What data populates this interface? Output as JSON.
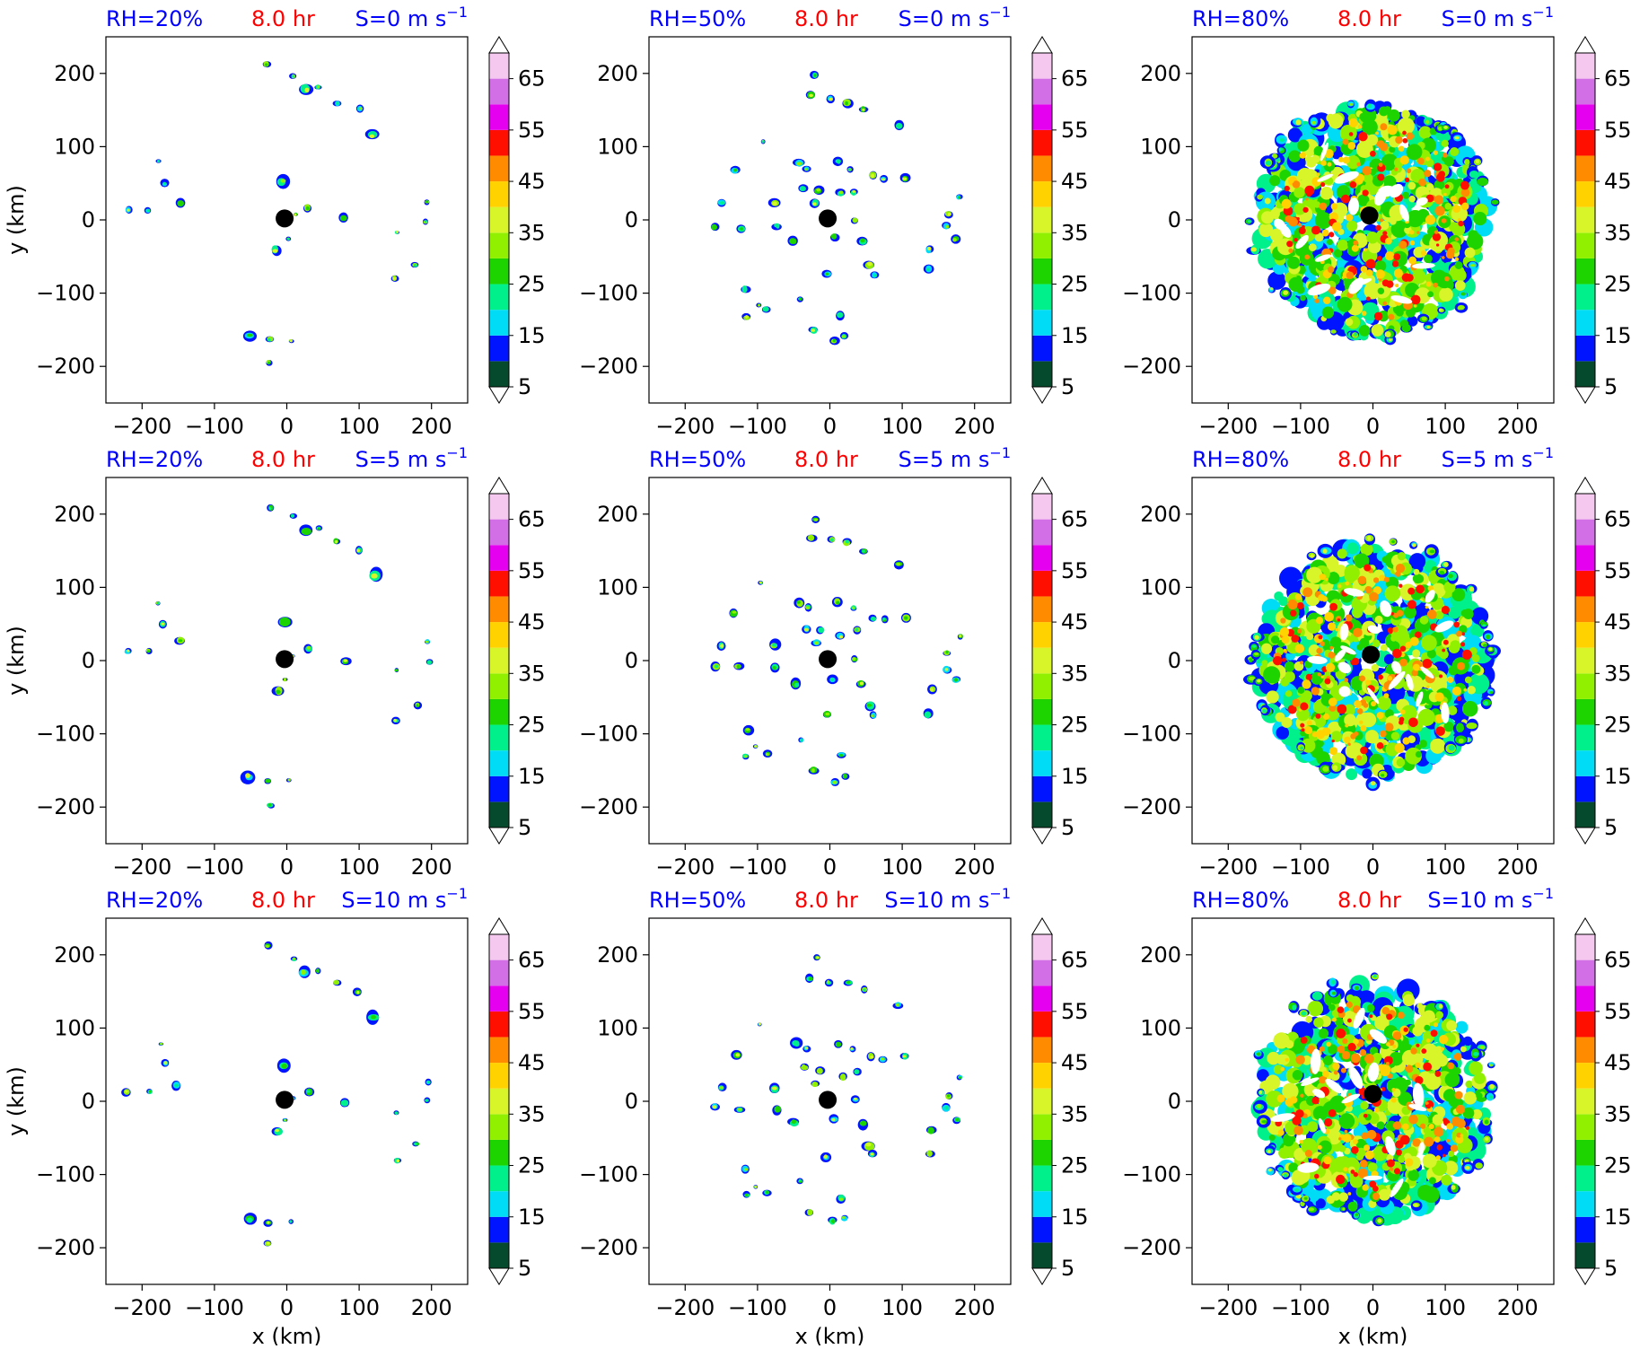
{
  "figure": {
    "y_axis_label": "y (km)",
    "x_axis_label": "x (km)",
    "time_label": "8.0 hr",
    "colors": {
      "rh_label": "#0000ff",
      "time_label": "#ff0000",
      "shear_label": "#0000ff",
      "center_marker": "#000000"
    }
  },
  "chart_data": [
    {
      "type": "heatmap",
      "rh_label": "RH=20%",
      "time_label": "8.0 hr",
      "shear_label": "S=0 m s",
      "shear_exponent": "−1",
      "xlim": [
        -250,
        250
      ],
      "ylim": [
        -250,
        250
      ],
      "xticks": [
        -200,
        -100,
        0,
        100,
        200
      ],
      "yticks": [
        -200,
        -100,
        0,
        100,
        200
      ],
      "xlabel": "",
      "ylabel": "y (km)",
      "coverage": "sparse",
      "center": [
        -3,
        2
      ]
    },
    {
      "type": "heatmap",
      "rh_label": "RH=50%",
      "time_label": "8.0 hr",
      "shear_label": "S=0 m s",
      "shear_exponent": "−1",
      "xlim": [
        -250,
        250
      ],
      "ylim": [
        -250,
        250
      ],
      "xticks": [
        -200,
        -100,
        0,
        100,
        200
      ],
      "yticks": [
        -200,
        -100,
        0,
        100,
        200
      ],
      "xlabel": "",
      "ylabel": "",
      "coverage": "moderate",
      "center": [
        -3,
        2
      ]
    },
    {
      "type": "heatmap",
      "rh_label": "RH=80%",
      "time_label": "8.0 hr",
      "shear_label": "S=0 m s",
      "shear_exponent": "−1",
      "xlim": [
        -250,
        250
      ],
      "ylim": [
        -250,
        250
      ],
      "xticks": [
        -200,
        -100,
        0,
        100,
        200
      ],
      "yticks": [
        -200,
        -100,
        0,
        100,
        200
      ],
      "xlabel": "",
      "ylabel": "",
      "coverage": "dense",
      "center": [
        -5,
        6
      ]
    },
    {
      "type": "heatmap",
      "rh_label": "RH=20%",
      "time_label": "8.0 hr",
      "shear_label": "S=5 m s",
      "shear_exponent": "−1",
      "xlim": [
        -250,
        250
      ],
      "ylim": [
        -250,
        250
      ],
      "xticks": [
        -200,
        -100,
        0,
        100,
        200
      ],
      "yticks": [
        -200,
        -100,
        0,
        100,
        200
      ],
      "xlabel": "",
      "ylabel": "y (km)",
      "coverage": "sparse",
      "center": [
        -3,
        2
      ]
    },
    {
      "type": "heatmap",
      "rh_label": "RH=50%",
      "time_label": "8.0 hr",
      "shear_label": "S=5 m s",
      "shear_exponent": "−1",
      "xlim": [
        -250,
        250
      ],
      "ylim": [
        -250,
        250
      ],
      "xticks": [
        -200,
        -100,
        0,
        100,
        200
      ],
      "yticks": [
        -200,
        -100,
        0,
        100,
        200
      ],
      "xlabel": "",
      "ylabel": "",
      "coverage": "moderate",
      "center": [
        -3,
        2
      ]
    },
    {
      "type": "heatmap",
      "rh_label": "RH=80%",
      "time_label": "8.0 hr",
      "shear_label": "S=5 m s",
      "shear_exponent": "−1",
      "xlim": [
        -250,
        250
      ],
      "ylim": [
        -250,
        250
      ],
      "xticks": [
        -200,
        -100,
        0,
        100,
        200
      ],
      "yticks": [
        -200,
        -100,
        0,
        100,
        200
      ],
      "xlabel": "",
      "ylabel": "",
      "coverage": "dense",
      "center": [
        -3,
        8
      ]
    },
    {
      "type": "heatmap",
      "rh_label": "RH=20%",
      "time_label": "8.0 hr",
      "shear_label": "S=10 m s",
      "shear_exponent": "−1",
      "xlim": [
        -250,
        250
      ],
      "ylim": [
        -250,
        250
      ],
      "xticks": [
        -200,
        -100,
        0,
        100,
        200
      ],
      "yticks": [
        -200,
        -100,
        0,
        100,
        200
      ],
      "xlabel": "x (km)",
      "ylabel": "y (km)",
      "coverage": "sparse",
      "center": [
        -3,
        2
      ]
    },
    {
      "type": "heatmap",
      "rh_label": "RH=50%",
      "time_label": "8.0 hr",
      "shear_label": "S=10 m s",
      "shear_exponent": "−1",
      "xlim": [
        -250,
        250
      ],
      "ylim": [
        -250,
        250
      ],
      "xticks": [
        -200,
        -100,
        0,
        100,
        200
      ],
      "yticks": [
        -200,
        -100,
        0,
        100,
        200
      ],
      "xlabel": "x (km)",
      "ylabel": "",
      "coverage": "moderate",
      "center": [
        -3,
        2
      ]
    },
    {
      "type": "heatmap",
      "rh_label": "RH=80%",
      "time_label": "8.0 hr",
      "shear_label": "S=10 m s",
      "shear_exponent": "−1",
      "xlim": [
        -250,
        250
      ],
      "ylim": [
        -250,
        250
      ],
      "xticks": [
        -200,
        -100,
        0,
        100,
        200
      ],
      "yticks": [
        -200,
        -100,
        0,
        100,
        200
      ],
      "xlabel": "x (km)",
      "ylabel": "",
      "coverage": "dense",
      "center": [
        0,
        10
      ]
    }
  ],
  "colorbar": {
    "levels": [
      5,
      10,
      15,
      20,
      25,
      30,
      35,
      40,
      45,
      50,
      55,
      60,
      65,
      70
    ],
    "tick_labels": [
      "5",
      "15",
      "25",
      "35",
      "45",
      "55",
      "65"
    ],
    "tick_values": [
      5,
      15,
      25,
      35,
      45,
      55,
      65
    ],
    "extend": "both",
    "colors": [
      "#054a2c",
      "#0014ff",
      "#00dcf5",
      "#00f08c",
      "#1ed400",
      "#91f000",
      "#d7f528",
      "#ffd200",
      "#ff8c00",
      "#ff0f00",
      "#e600f0",
      "#d26ee6",
      "#f5c8f0"
    ]
  }
}
